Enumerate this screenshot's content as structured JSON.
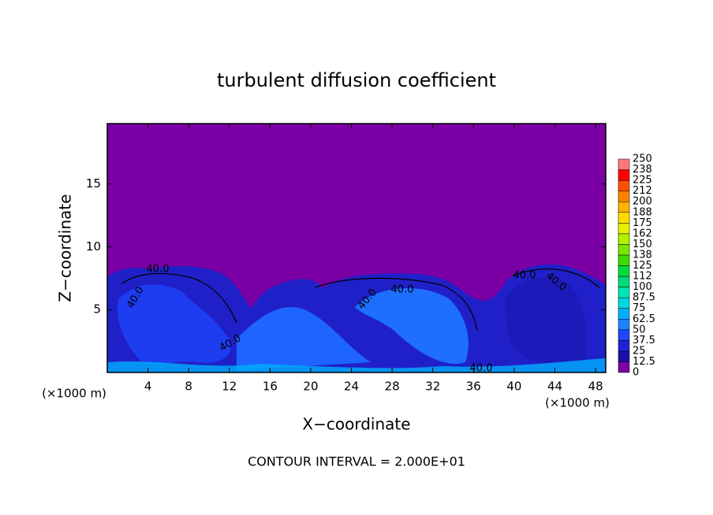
{
  "chart_data": {
    "type": "contour",
    "title": "turbulent diffusion coefficient",
    "x_label": "X−coordinate",
    "y_label": "Z−coordinate",
    "x_unit": "(×1000 m)",
    "footer": "CONTOUR INTERVAL = 2.000E+01",
    "xlim": [
      0,
      49
    ],
    "xticks": [
      4,
      8,
      12,
      16,
      20,
      24,
      28,
      32,
      36,
      40,
      44,
      48
    ],
    "ylim": [
      0,
      19.8
    ],
    "yticks": [
      5,
      10,
      15
    ],
    "contour_labels": [
      "40.0",
      "40.0",
      "40.0",
      "40.0",
      "40.0",
      "40.0",
      "40.0",
      "40.0"
    ],
    "colorbar": {
      "levels": [
        0,
        12.5,
        25,
        37.5,
        50,
        62.5,
        75,
        87.5,
        100,
        112,
        125,
        138,
        150,
        162,
        175,
        188,
        200,
        212,
        225,
        238,
        250
      ],
      "colors": [
        "#7a00a6",
        "#1c0fa8",
        "#2020d8",
        "#1e46ff",
        "#1e82ff",
        "#00b0ff",
        "#00d8e0",
        "#00e6b0",
        "#00dc78",
        "#00dc3c",
        "#3cdc00",
        "#78e600",
        "#b4f000",
        "#e6f000",
        "#ffdc00",
        "#ffb400",
        "#ff8200",
        "#ff5000",
        "#ff0000",
        "#ff7878"
      ]
    }
  }
}
